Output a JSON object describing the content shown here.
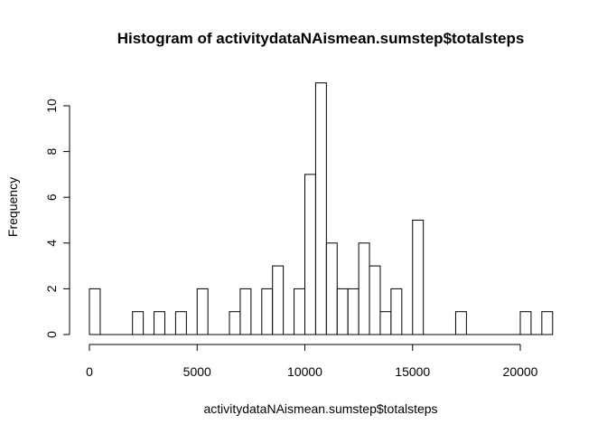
{
  "chart_data": {
    "type": "bar",
    "title": "Histogram of activitydataNAismean.sumstep$totalsteps",
    "xlabel": "activitydataNAismean.sumstep$totalsteps",
    "ylabel": "Frequency",
    "bin_width": 500,
    "x_start": 0,
    "values": [
      2,
      0,
      0,
      0,
      1,
      0,
      1,
      0,
      1,
      0,
      2,
      0,
      0,
      1,
      2,
      0,
      2,
      3,
      0,
      2,
      7,
      11,
      4,
      2,
      2,
      4,
      3,
      1,
      2,
      0,
      5,
      0,
      0,
      0,
      1,
      0,
      0,
      0,
      0,
      0,
      1,
      0,
      1
    ],
    "xlim": [
      0,
      21500
    ],
    "ylim": [
      0,
      11
    ],
    "x_ticks": [
      0,
      5000,
      10000,
      15000,
      20000
    ],
    "y_ticks": [
      0,
      2,
      4,
      6,
      8,
      10
    ],
    "grid": false,
    "bar_fill": "#ffffff",
    "bar_stroke": "#000000"
  }
}
